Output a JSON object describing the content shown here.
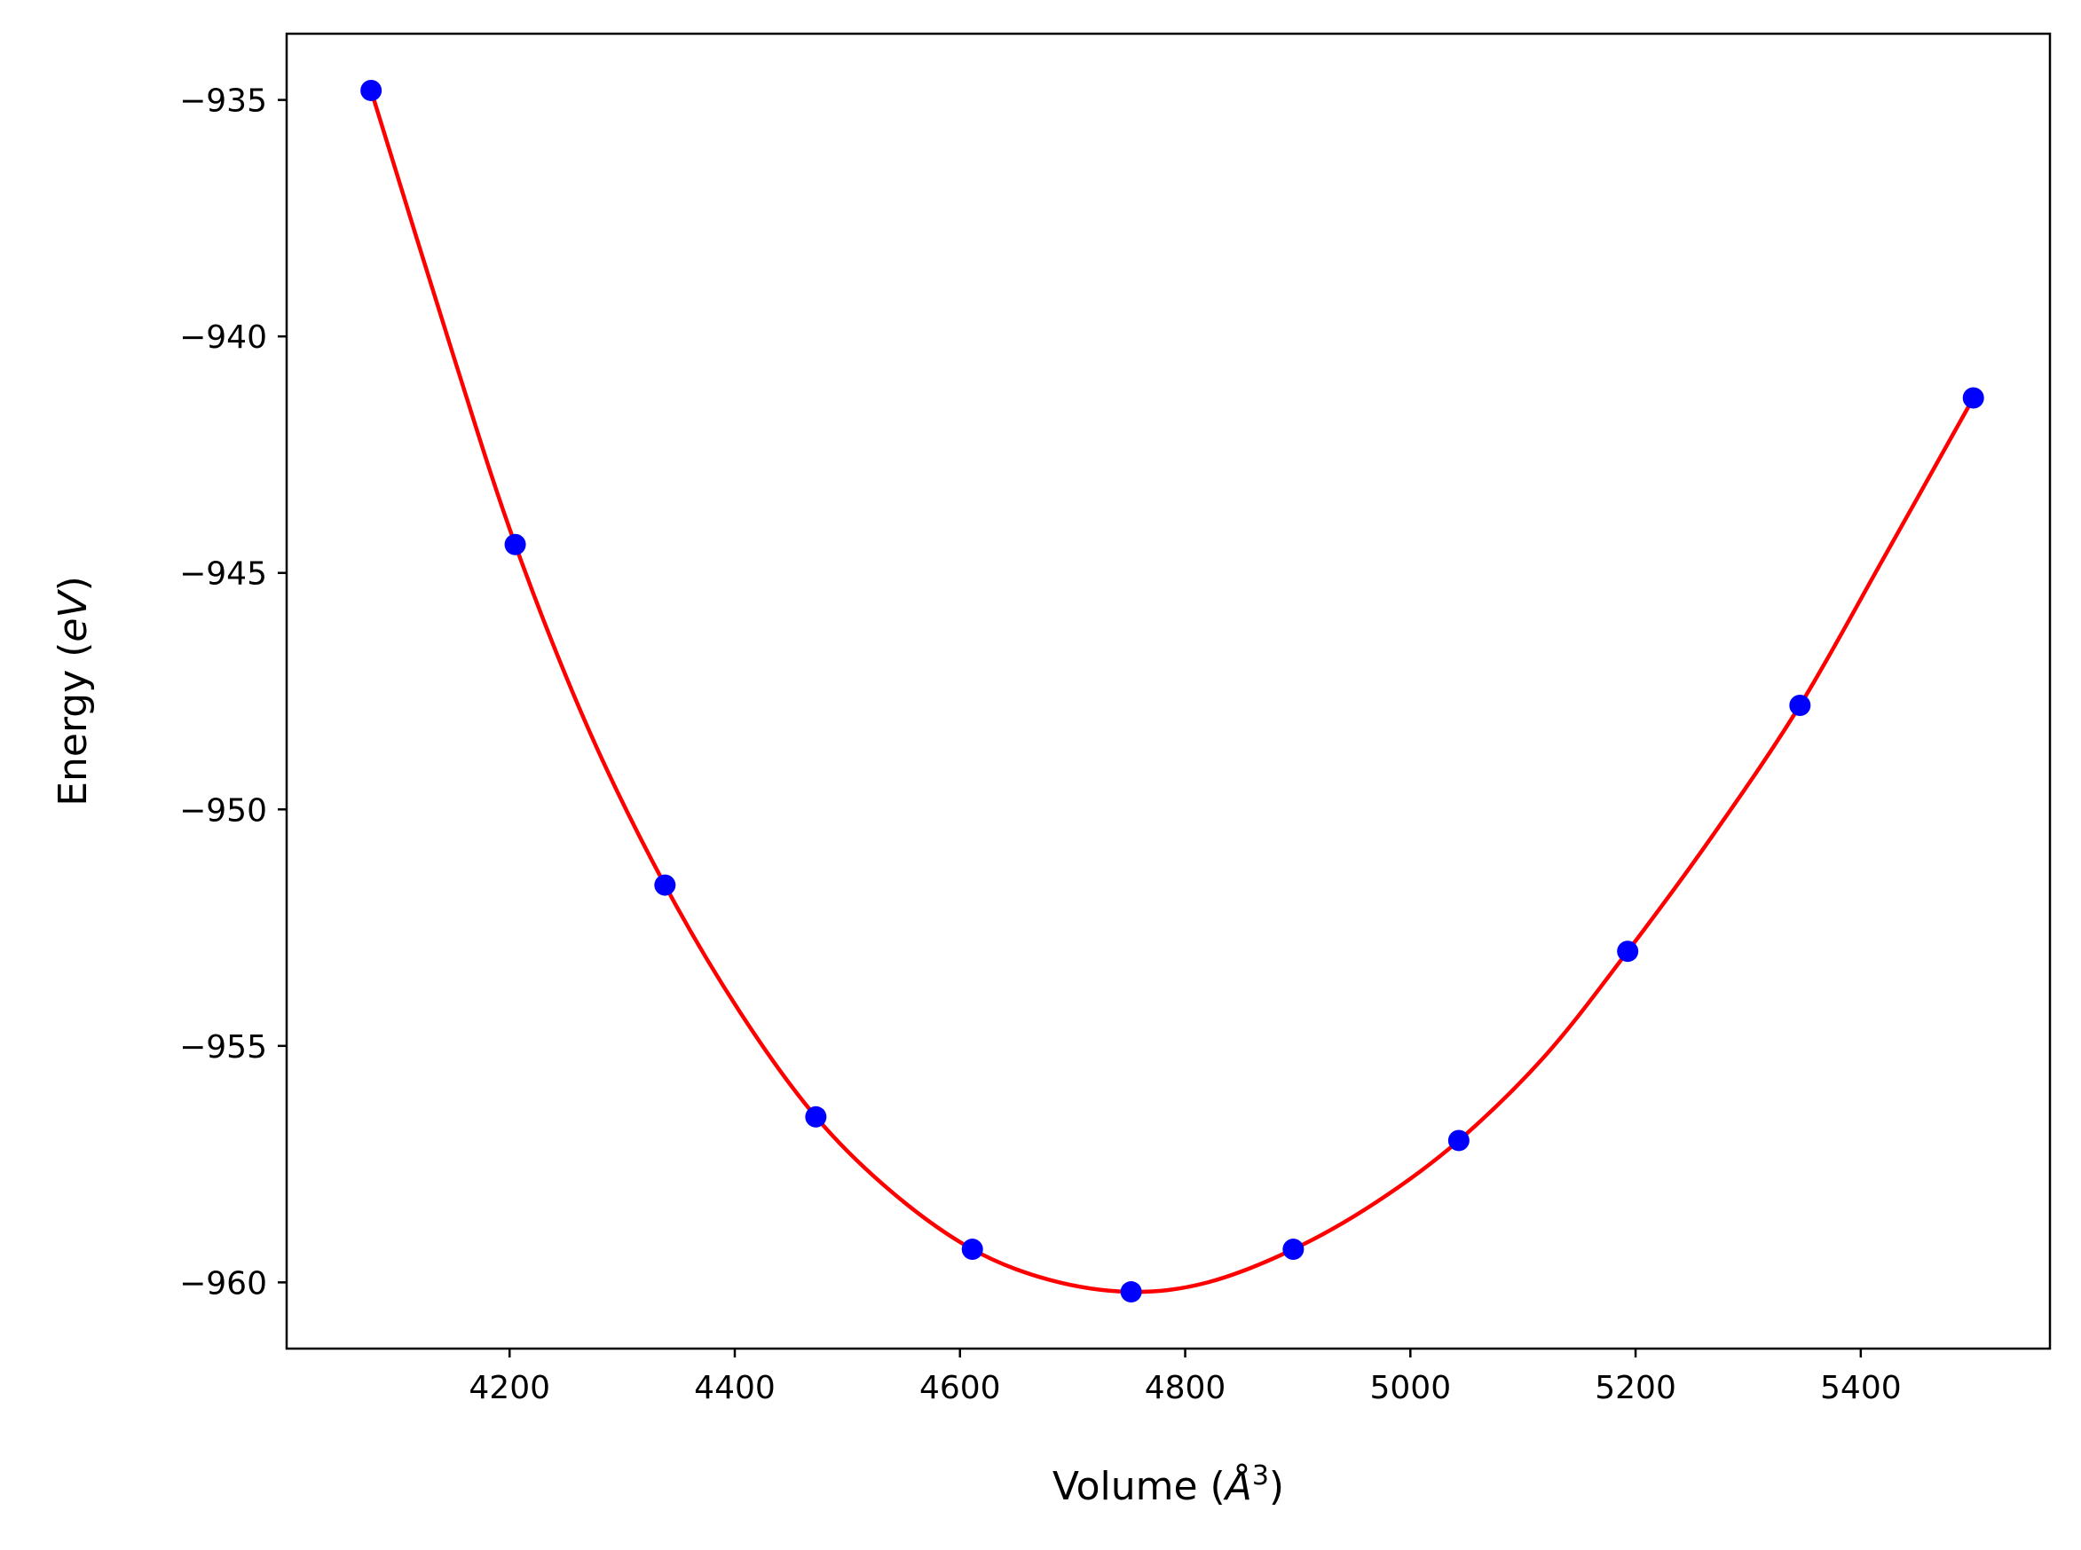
{
  "chart_data": {
    "type": "scatter",
    "xlabel": "Volume",
    "xlabel_unit": "Å",
    "xlabel_unit_exponent": "3",
    "ylabel": "Energy",
    "ylabel_unit": "eV",
    "xlim": [
      4002,
      5568
    ],
    "ylim": [
      -961.4,
      -933.6
    ],
    "x_ticks": [
      4200,
      4400,
      4600,
      4800,
      5000,
      5200,
      5400
    ],
    "x_tick_labels": [
      "4200",
      "4400",
      "4600",
      "4800",
      "5000",
      "5200",
      "5400"
    ],
    "y_ticks": [
      -935,
      -940,
      -945,
      -950,
      -955,
      -960
    ],
    "y_tick_labels": [
      "−935",
      "−940",
      "−945",
      "−950",
      "−955",
      "−960"
    ],
    "grid": false,
    "series": [
      {
        "kind": "points",
        "color": "#0000ff",
        "x": [
          4077,
          4205,
          4338,
          4472,
          4611,
          4752,
          4896,
          5043,
          5193,
          5346,
          5500
        ],
        "y": [
          -934.8,
          -944.4,
          -951.6,
          -956.5,
          -959.3,
          -960.2,
          -959.3,
          -957.0,
          -953.0,
          -947.8,
          -941.3
        ]
      },
      {
        "kind": "fit-curve",
        "color": "#ff0000",
        "x": [
          4077,
          4150,
          4205,
          4270,
          4338,
          4405,
          4472,
          4540,
          4611,
          4680,
          4752,
          4820,
          4896,
          4970,
          5043,
          5120,
          5193,
          5270,
          5346,
          5420,
          5500
        ],
        "y": [
          -934.8,
          -940.4,
          -944.4,
          -948.3,
          -951.6,
          -954.3,
          -956.5,
          -958.1,
          -959.3,
          -959.95,
          -960.2,
          -960.0,
          -959.3,
          -958.3,
          -957.0,
          -955.2,
          -953.0,
          -950.5,
          -947.8,
          -944.7,
          -941.3
        ]
      }
    ]
  }
}
